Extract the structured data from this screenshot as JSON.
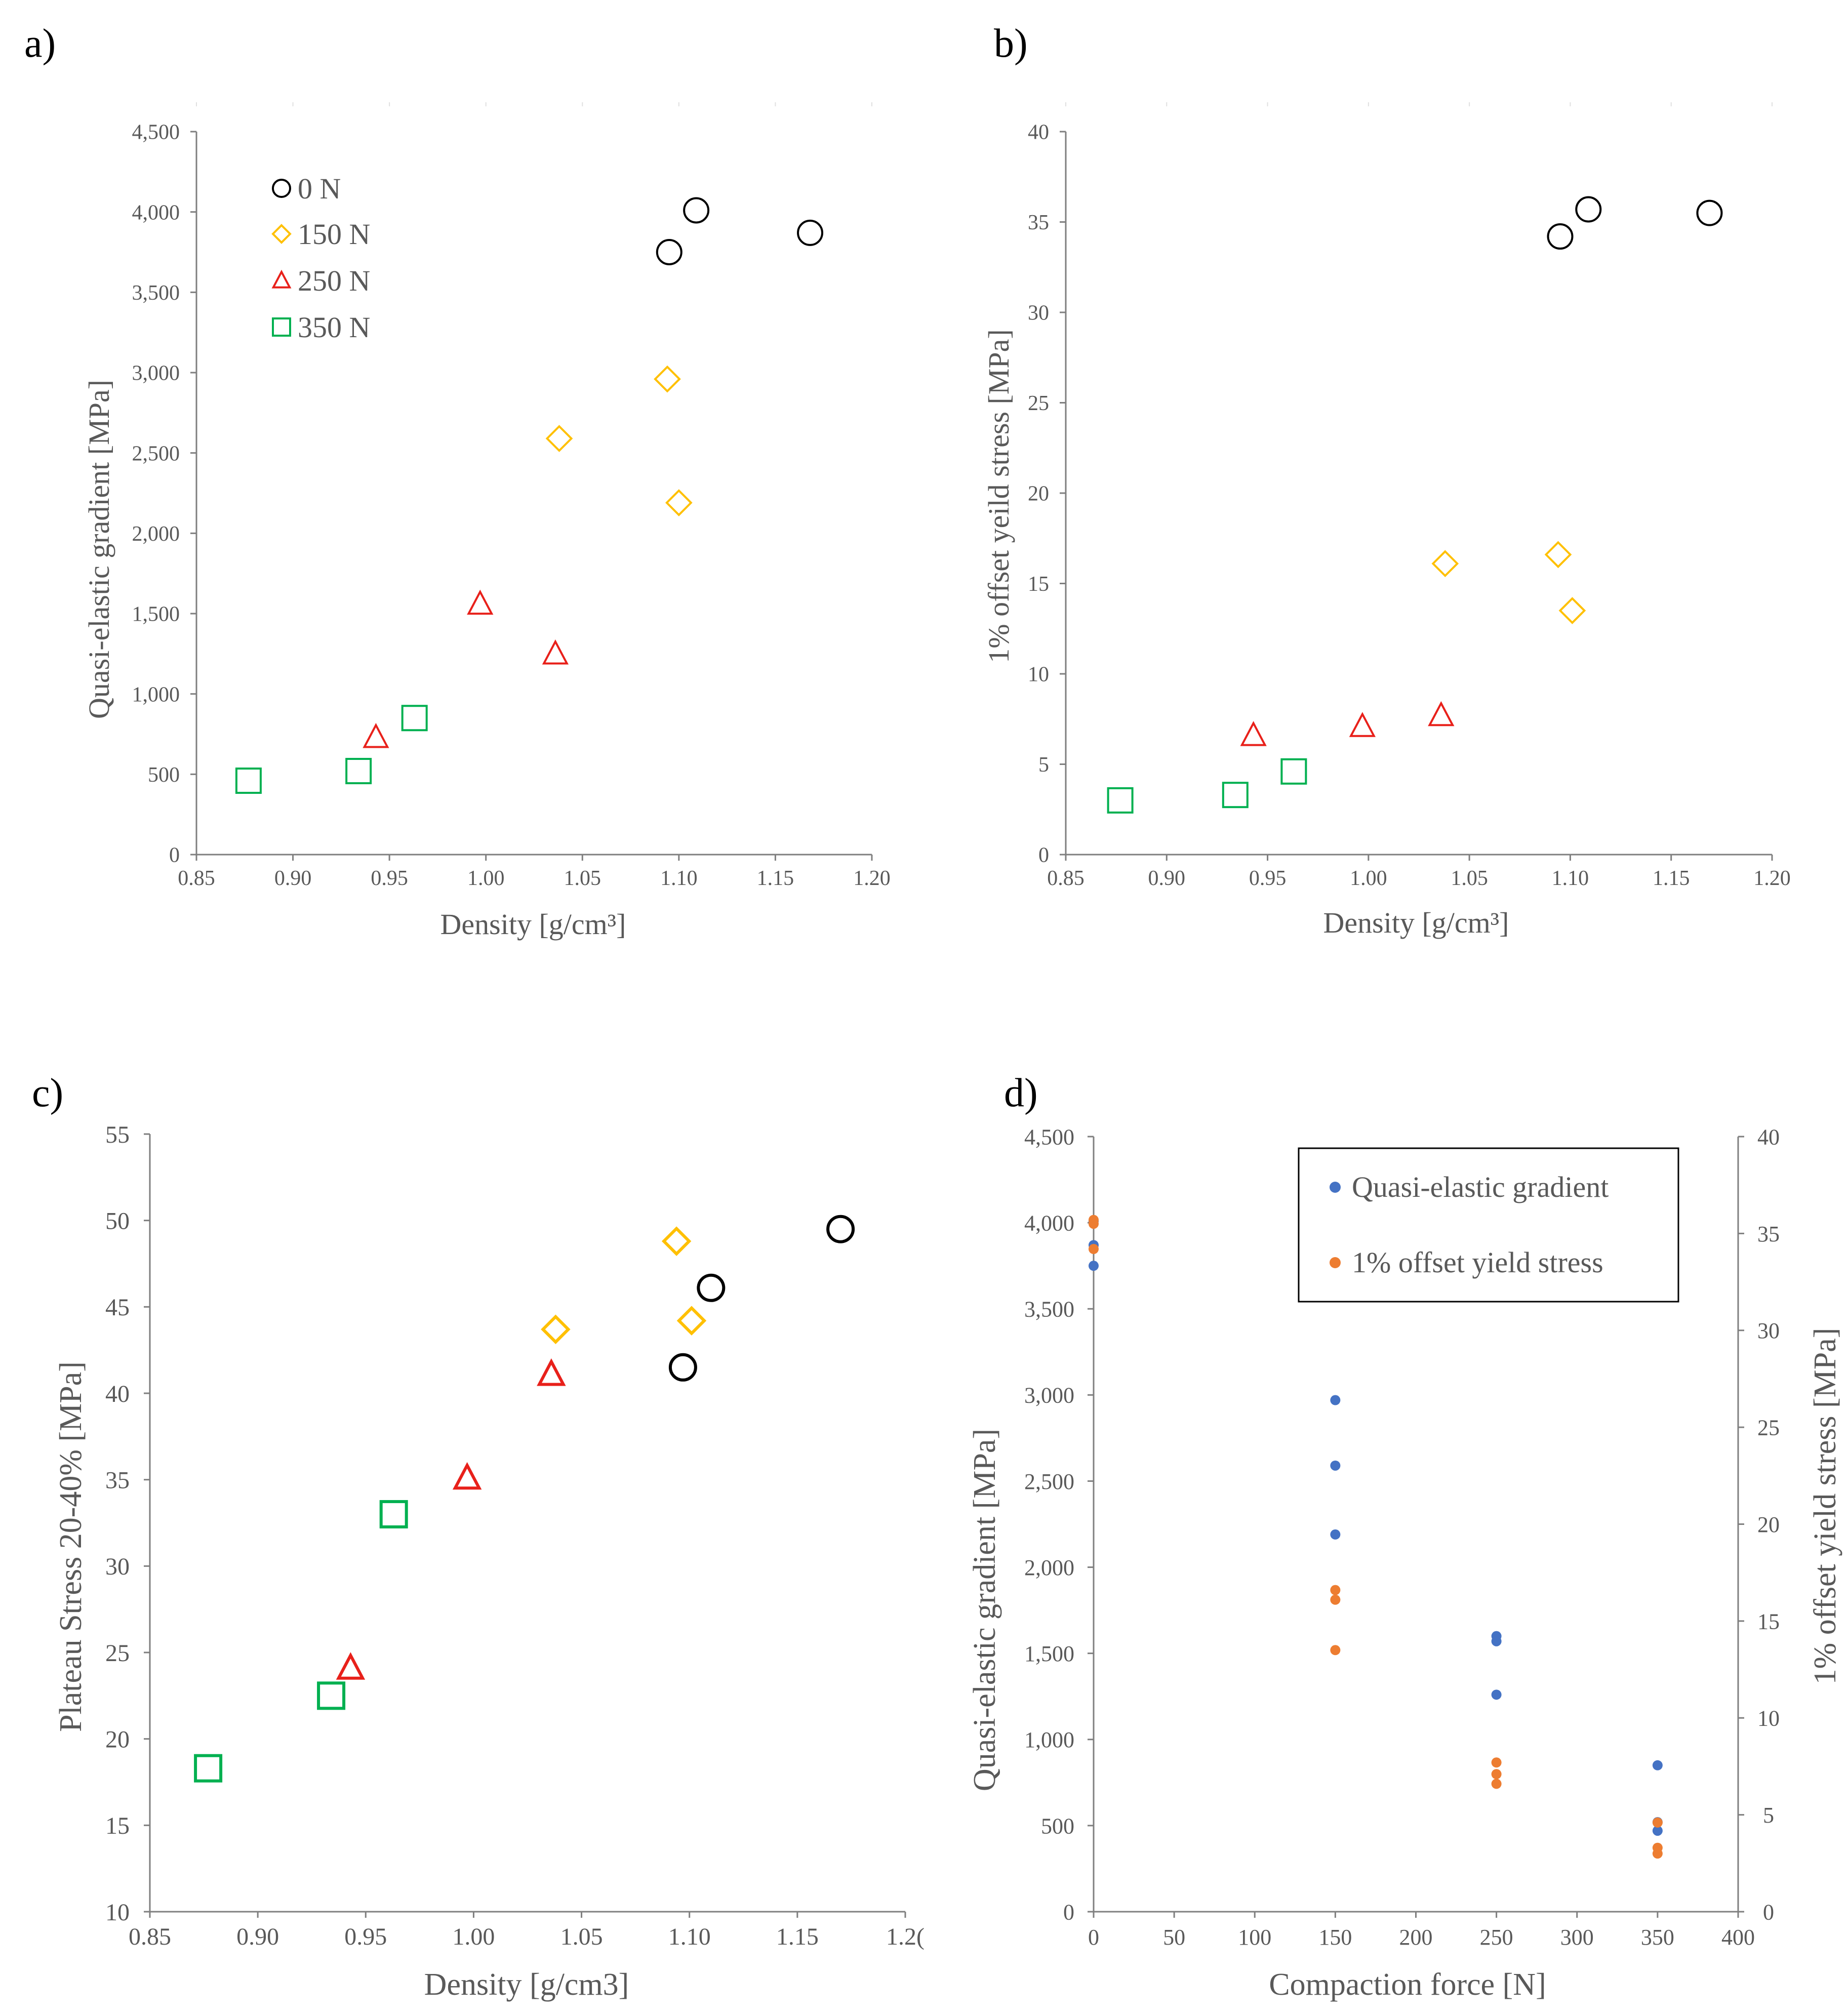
{
  "colors": {
    "n0": "#000000",
    "n150": "#FFC000",
    "n250": "#E8201A",
    "n350": "#00B050",
    "blue": "#4472C4",
    "orange": "#ED7D31",
    "axis": "#7F7F7F",
    "text": "#595959"
  },
  "chart_data": [
    {
      "id": "a",
      "panel_label": "a)",
      "type": "scatter",
      "xlabel": "Density [g/cm³]",
      "ylabel": "Quasi-elastic gradient [MPa]",
      "xlim": [
        0.85,
        1.2
      ],
      "ylim": [
        0,
        4500
      ],
      "xticks": [
        "0.85",
        "0.90",
        "0.95",
        "1.00",
        "1.05",
        "1.10",
        "1.15",
        "1.20"
      ],
      "yticks": [
        "0",
        "500",
        "1,000",
        "1,500",
        "2,000",
        "2,500",
        "3,000",
        "3,500",
        "4,000",
        "4,500"
      ],
      "legend": [
        "0 N",
        "150 N",
        "250 N",
        "350 N"
      ],
      "legend_position": "top-left",
      "series": [
        {
          "name": "0 N",
          "marker": "circle",
          "color_key": "n0",
          "x": [
            1.095,
            1.109,
            1.168
          ],
          "y": [
            3750,
            4010,
            3870
          ]
        },
        {
          "name": "150 N",
          "marker": "diamond",
          "color_key": "n150",
          "x": [
            1.038,
            1.094,
            1.1
          ],
          "y": [
            2590,
            2960,
            2190
          ]
        },
        {
          "name": "250 N",
          "marker": "triangle",
          "color_key": "n250",
          "x": [
            0.943,
            0.997,
            1.036
          ],
          "y": [
            730,
            1560,
            1250
          ]
        },
        {
          "name": "350 N",
          "marker": "square",
          "color_key": "n350",
          "x": [
            0.877,
            0.934,
            0.963
          ],
          "y": [
            460,
            520,
            850
          ]
        }
      ]
    },
    {
      "id": "b",
      "panel_label": "b)",
      "type": "scatter",
      "xlabel": "Density [g/cm³]",
      "ylabel": "1% offset yeild stress [MPa]",
      "xlim": [
        0.85,
        1.2
      ],
      "ylim": [
        0,
        40
      ],
      "xticks": [
        "0.85",
        "0.90",
        "0.95",
        "1.00",
        "1.05",
        "1.10",
        "1.15",
        "1.20"
      ],
      "yticks": [
        "0",
        "5",
        "10",
        "15",
        "20",
        "25",
        "30",
        "35",
        "40"
      ],
      "series": [
        {
          "name": "0 N",
          "marker": "circle",
          "color_key": "n0",
          "x": [
            1.095,
            1.109,
            1.169
          ],
          "y": [
            34.2,
            35.7,
            35.5
          ]
        },
        {
          "name": "150 N",
          "marker": "diamond",
          "color_key": "n150",
          "x": [
            1.038,
            1.094,
            1.101
          ],
          "y": [
            16.1,
            16.6,
            13.5
          ]
        },
        {
          "name": "250 N",
          "marker": "triangle",
          "color_key": "n250",
          "x": [
            0.943,
            0.997,
            1.036
          ],
          "y": [
            6.6,
            7.1,
            7.7
          ]
        },
        {
          "name": "350 N",
          "marker": "square",
          "color_key": "n350",
          "x": [
            0.877,
            0.934,
            0.963
          ],
          "y": [
            3.0,
            3.3,
            4.6
          ]
        }
      ]
    },
    {
      "id": "c",
      "panel_label": "c)",
      "type": "scatter",
      "xlabel": "Density [g/cm3]",
      "ylabel": "Plateau Stress 20-40% [MPa]",
      "xlim": [
        0.85,
        1.2
      ],
      "ylim": [
        10,
        55
      ],
      "xticks": [
        "0.85",
        "0.90",
        "0.95",
        "1.00",
        "1.05",
        "1.10",
        "1.15",
        "1.2("
      ],
      "yticks": [
        "10",
        "15",
        "20",
        "25",
        "30",
        "35",
        "40",
        "45",
        "50",
        "55"
      ],
      "series": [
        {
          "name": "0 N",
          "marker": "circle",
          "color_key": "n0",
          "x": [
            1.097,
            1.11,
            1.17
          ],
          "y": [
            41.5,
            46.1,
            49.5
          ]
        },
        {
          "name": "150 N",
          "marker": "diamond",
          "color_key": "n150",
          "x": [
            1.038,
            1.094,
            1.101
          ],
          "y": [
            43.7,
            48.8,
            44.2
          ]
        },
        {
          "name": "250 N",
          "marker": "triangle",
          "color_key": "n250",
          "x": [
            0.943,
            0.997,
            1.036
          ],
          "y": [
            24.1,
            35.1,
            41.1
          ]
        },
        {
          "name": "350 N",
          "marker": "square",
          "color_key": "n350",
          "x": [
            0.877,
            0.934,
            0.963
          ],
          "y": [
            18.3,
            22.5,
            33.0
          ]
        }
      ]
    },
    {
      "id": "d",
      "panel_label": "d)",
      "type": "scatter",
      "xlabel": "Compaction force [N]",
      "ylabel": "Quasi-elastic gradient [MPa]",
      "y2label": "1% offset yield stress [MPa]",
      "xlim": [
        0,
        400
      ],
      "ylim": [
        0,
        4500
      ],
      "y2lim": [
        0,
        40
      ],
      "xticks": [
        "0",
        "50",
        "100",
        "150",
        "200",
        "250",
        "300",
        "350",
        "400"
      ],
      "yticks": [
        "0",
        "500",
        "1,000",
        "1,500",
        "2,000",
        "2,500",
        "3,000",
        "3,500",
        "4,000",
        "4,500"
      ],
      "y2ticks": [
        "0",
        "5",
        "10",
        "15",
        "20",
        "25",
        "30",
        "35",
        "40"
      ],
      "legend": [
        "Quasi-elastic gradient",
        "1% offset yield stress"
      ],
      "legend_position": "top-right",
      "series": [
        {
          "name": "Quasi-elastic gradient",
          "axis": "left",
          "color_key": "blue",
          "x": [
            0,
            0,
            0,
            150,
            150,
            150,
            250,
            250,
            250,
            350,
            350,
            350
          ],
          "y": [
            3750,
            3870,
            4010,
            2190,
            2590,
            2970,
            1260,
            1570,
            1600,
            470,
            520,
            850
          ]
        },
        {
          "name": "1% offset yield stress",
          "axis": "right",
          "color_key": "orange",
          "x": [
            0,
            0,
            0,
            150,
            150,
            150,
            250,
            250,
            250,
            350,
            350,
            350
          ],
          "y": [
            34.2,
            35.5,
            35.7,
            13.5,
            16.1,
            16.6,
            6.6,
            7.1,
            7.7,
            3.0,
            3.3,
            4.6
          ]
        }
      ]
    }
  ]
}
